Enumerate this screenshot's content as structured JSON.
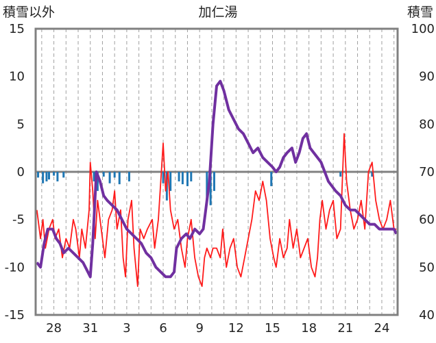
{
  "chart_data": {
    "type": "line",
    "title": "加仁湯",
    "left_axis": {
      "label": "積雪以外",
      "ylim": [
        -15,
        15
      ],
      "ticks": [
        "15",
        "10",
        "5",
        "0",
        "-5",
        "-10",
        "-15"
      ]
    },
    "right_axis": {
      "label": "積雪",
      "ylim": [
        40,
        100
      ],
      "ticks": [
        "100",
        "90",
        "80",
        "70",
        "60",
        "50",
        "40"
      ]
    },
    "x_axis": {
      "xlim": [
        26.5,
        56.3
      ],
      "labels": [
        "28",
        "31",
        "3",
        "6",
        "9",
        "12",
        "15",
        "18",
        "21",
        "24"
      ],
      "label_days": [
        28,
        31,
        34,
        37,
        40,
        43,
        46,
        49,
        52,
        55
      ],
      "grid_days": [
        27,
        28,
        29,
        30,
        31,
        32,
        33,
        34,
        35,
        36,
        37,
        38,
        39,
        40,
        41,
        42,
        43,
        44,
        45,
        46,
        47,
        48,
        49,
        50,
        51,
        52,
        53,
        54,
        55,
        56
      ]
    },
    "colors": {
      "temperature": "#ff1a1a",
      "snow_depth": "#7030a0",
      "precipitation": "#1f77b4",
      "zero_line": "#808080",
      "frame": "#808080",
      "grid": "#a0a0a0"
    },
    "series": [
      {
        "key": "temperature",
        "axis": "left",
        "points": [
          [
            26.6,
            -4
          ],
          [
            26.9,
            -7
          ],
          [
            27.1,
            -5
          ],
          [
            27.3,
            -8
          ],
          [
            27.6,
            -6
          ],
          [
            27.9,
            -5
          ],
          [
            28.1,
            -7
          ],
          [
            28.4,
            -6
          ],
          [
            28.7,
            -9
          ],
          [
            29,
            -7
          ],
          [
            29.3,
            -8
          ],
          [
            29.6,
            -5
          ],
          [
            29.8,
            -6
          ],
          [
            30.1,
            -9
          ],
          [
            30.3,
            -6
          ],
          [
            30.6,
            -8
          ],
          [
            30.9,
            -4
          ],
          [
            31,
            1
          ],
          [
            31.2,
            -2
          ],
          [
            31.4,
            -7
          ],
          [
            31.6,
            -3
          ],
          [
            31.9,
            -6
          ],
          [
            32.2,
            -9
          ],
          [
            32.5,
            -5
          ],
          [
            32.8,
            -4
          ],
          [
            33,
            -2
          ],
          [
            33.2,
            -6
          ],
          [
            33.5,
            -4
          ],
          [
            33.7,
            -9
          ],
          [
            33.9,
            -11
          ],
          [
            34.1,
            -5
          ],
          [
            34.4,
            -3
          ],
          [
            34.6,
            -8
          ],
          [
            34.9,
            -12
          ],
          [
            35.1,
            -6
          ],
          [
            35.4,
            -7
          ],
          [
            35.7,
            -6
          ],
          [
            36.1,
            -5
          ],
          [
            36.3,
            -8
          ],
          [
            36.6,
            -5
          ],
          [
            36.8,
            -1
          ],
          [
            37,
            3
          ],
          [
            37.2,
            -2
          ],
          [
            37.4,
            0
          ],
          [
            37.6,
            -4
          ],
          [
            37.9,
            -6
          ],
          [
            38.2,
            -5
          ],
          [
            38.5,
            -8
          ],
          [
            38.8,
            -10
          ],
          [
            39,
            -7
          ],
          [
            39.3,
            -5
          ],
          [
            39.6,
            -9
          ],
          [
            39.9,
            -11
          ],
          [
            40.2,
            -12
          ],
          [
            40.4,
            -9
          ],
          [
            40.6,
            -8
          ],
          [
            40.9,
            -9
          ],
          [
            41.1,
            -8
          ],
          [
            41.4,
            -8
          ],
          [
            41.7,
            -9
          ],
          [
            41.9,
            -6
          ],
          [
            42.2,
            -10
          ],
          [
            42.5,
            -8
          ],
          [
            42.8,
            -7
          ],
          [
            43.1,
            -10
          ],
          [
            43.4,
            -11
          ],
          [
            43.7,
            -9
          ],
          [
            44,
            -7
          ],
          [
            44.3,
            -5
          ],
          [
            44.6,
            -2
          ],
          [
            44.9,
            -3
          ],
          [
            45.2,
            -1
          ],
          [
            45.5,
            -3
          ],
          [
            45.8,
            -7
          ],
          [
            46.1,
            -9
          ],
          [
            46.3,
            -10
          ],
          [
            46.6,
            -7
          ],
          [
            46.9,
            -9
          ],
          [
            47.2,
            -8
          ],
          [
            47.4,
            -5
          ],
          [
            47.7,
            -8
          ],
          [
            48,
            -6
          ],
          [
            48.3,
            -9
          ],
          [
            48.6,
            -8
          ],
          [
            48.9,
            -7
          ],
          [
            49.2,
            -10
          ],
          [
            49.5,
            -11
          ],
          [
            49.7,
            -9
          ],
          [
            49.9,
            -5
          ],
          [
            50.1,
            -3
          ],
          [
            50.4,
            -6
          ],
          [
            50.7,
            -4
          ],
          [
            51,
            -3
          ],
          [
            51.3,
            -7
          ],
          [
            51.6,
            -6
          ],
          [
            51.9,
            4
          ],
          [
            52.1,
            -1
          ],
          [
            52.4,
            -4
          ],
          [
            52.7,
            -6
          ],
          [
            53,
            -5
          ],
          [
            53.3,
            -3
          ],
          [
            53.6,
            -6
          ],
          [
            53.9,
            0
          ],
          [
            54.2,
            1
          ],
          [
            54.5,
            -3
          ],
          [
            54.8,
            -5
          ],
          [
            55.1,
            -6
          ],
          [
            55.4,
            -5
          ],
          [
            55.7,
            -3
          ],
          [
            56,
            -6
          ],
          [
            56.2,
            -6
          ]
        ]
      },
      {
        "key": "snow_depth",
        "axis": "right",
        "points": [
          [
            26.6,
            51
          ],
          [
            26.9,
            50
          ],
          [
            27.2,
            55
          ],
          [
            27.5,
            58
          ],
          [
            27.9,
            58
          ],
          [
            28.2,
            56
          ],
          [
            28.5,
            55
          ],
          [
            28.8,
            53
          ],
          [
            29.2,
            54
          ],
          [
            29.6,
            53
          ],
          [
            30,
            52
          ],
          [
            30.4,
            51
          ],
          [
            30.8,
            49
          ],
          [
            31,
            48
          ],
          [
            31.2,
            55
          ],
          [
            31.5,
            70
          ],
          [
            31.8,
            68
          ],
          [
            32.1,
            65
          ],
          [
            32.4,
            64
          ],
          [
            32.8,
            63
          ],
          [
            33.2,
            62
          ],
          [
            33.6,
            60
          ],
          [
            34,
            58
          ],
          [
            34.4,
            57
          ],
          [
            34.8,
            56
          ],
          [
            35.2,
            55
          ],
          [
            35.6,
            53
          ],
          [
            36,
            52
          ],
          [
            36.4,
            50
          ],
          [
            36.8,
            49
          ],
          [
            37.2,
            48
          ],
          [
            37.6,
            48
          ],
          [
            37.9,
            49
          ],
          [
            38.1,
            54
          ],
          [
            38.5,
            56
          ],
          [
            38.9,
            57
          ],
          [
            39.2,
            56
          ],
          [
            39.6,
            58
          ],
          [
            40,
            57
          ],
          [
            40.3,
            58
          ],
          [
            40.5,
            62
          ],
          [
            40.8,
            68
          ],
          [
            41.1,
            80
          ],
          [
            41.4,
            88
          ],
          [
            41.7,
            89
          ],
          [
            42,
            87
          ],
          [
            42.4,
            83
          ],
          [
            42.8,
            81
          ],
          [
            43.2,
            79
          ],
          [
            43.6,
            78
          ],
          [
            44,
            76
          ],
          [
            44.4,
            74
          ],
          [
            44.8,
            75
          ],
          [
            45.2,
            73
          ],
          [
            45.6,
            72
          ],
          [
            46,
            71
          ],
          [
            46.3,
            70
          ],
          [
            46.6,
            71
          ],
          [
            46.9,
            73
          ],
          [
            47.2,
            74
          ],
          [
            47.6,
            75
          ],
          [
            47.9,
            72
          ],
          [
            48.2,
            74
          ],
          [
            48.5,
            77
          ],
          [
            48.8,
            78
          ],
          [
            49.1,
            75
          ],
          [
            49.4,
            74
          ],
          [
            49.7,
            73
          ],
          [
            50,
            72
          ],
          [
            50.3,
            70
          ],
          [
            50.6,
            68
          ],
          [
            50.9,
            67
          ],
          [
            51.2,
            66
          ],
          [
            51.6,
            65
          ],
          [
            52,
            63
          ],
          [
            52.4,
            62
          ],
          [
            52.8,
            62
          ],
          [
            53.2,
            61
          ],
          [
            53.6,
            60
          ],
          [
            54,
            59
          ],
          [
            54.4,
            59
          ],
          [
            54.8,
            58
          ],
          [
            55.2,
            58
          ],
          [
            55.6,
            58
          ],
          [
            56,
            58
          ],
          [
            56.2,
            57
          ]
        ]
      },
      {
        "key": "precipitation",
        "axis": "left",
        "type": "bar",
        "points": [
          [
            26.7,
            -0.6
          ],
          [
            27.1,
            -1.2
          ],
          [
            27.4,
            -1
          ],
          [
            27.6,
            -0.8
          ],
          [
            28,
            -0.4
          ],
          [
            28.3,
            -1
          ],
          [
            28.8,
            -0.6
          ],
          [
            31.3,
            -1
          ],
          [
            31.6,
            -2
          ],
          [
            32.1,
            -0.5
          ],
          [
            32.6,
            -1.2
          ],
          [
            33,
            -0.6
          ],
          [
            33.4,
            -1.3
          ],
          [
            34.2,
            -1
          ],
          [
            37,
            -1.2
          ],
          [
            37.3,
            -3
          ],
          [
            37.6,
            -2
          ],
          [
            38.3,
            -1
          ],
          [
            38.6,
            -1.3
          ],
          [
            39,
            -1.5
          ],
          [
            39.3,
            -1
          ],
          [
            40.6,
            -3
          ],
          [
            40.9,
            -3.5
          ],
          [
            41.2,
            -2
          ],
          [
            45.9,
            -1.5
          ],
          [
            51.6,
            -0.5
          ],
          [
            54.2,
            -0.5
          ]
        ]
      }
    ]
  }
}
